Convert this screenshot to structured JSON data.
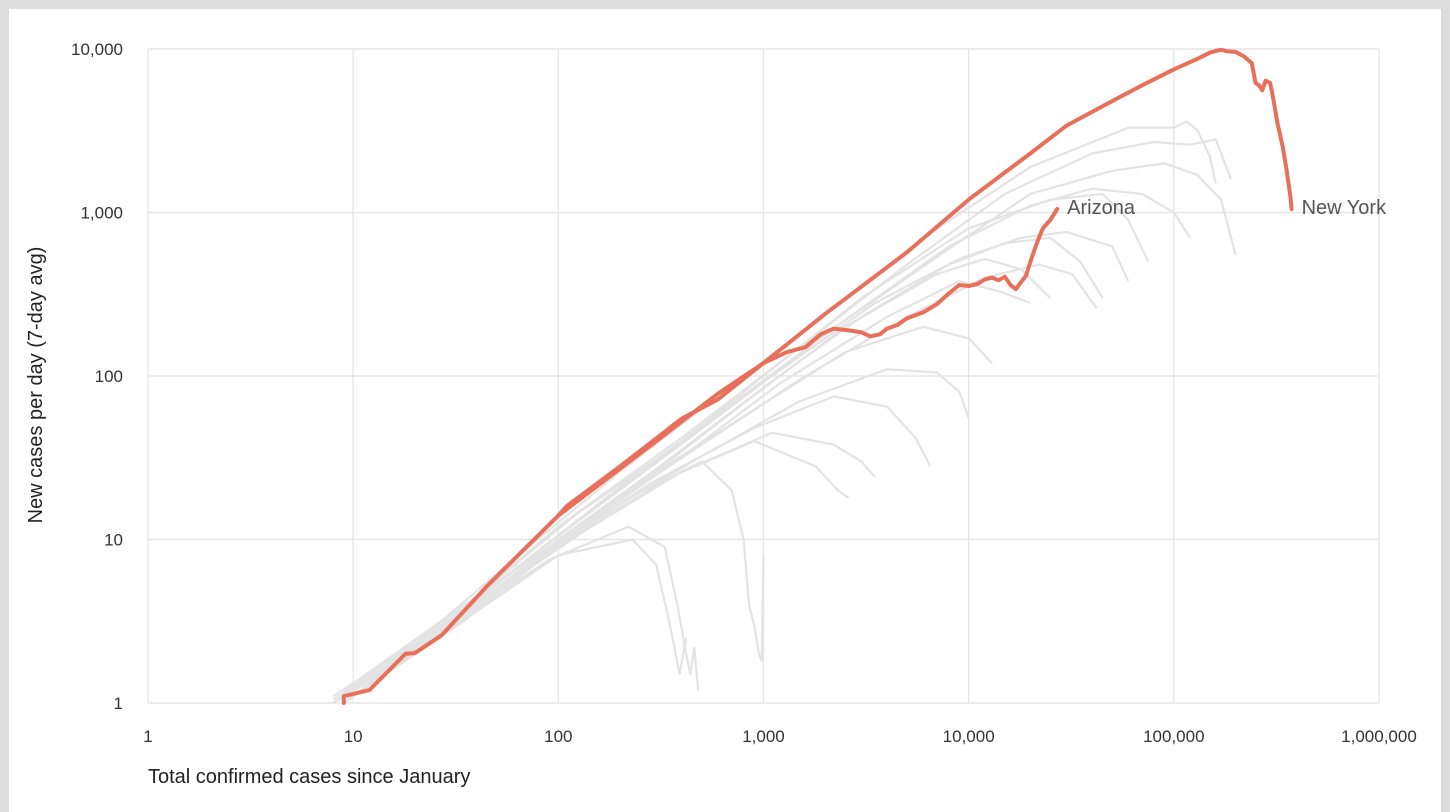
{
  "chart_data": {
    "type": "line",
    "xlabel": "Total confirmed cases since January",
    "ylabel": "New cases per day (7-day avg)",
    "x_scale": "log",
    "y_scale": "log",
    "xlim": [
      1,
      1000000
    ],
    "ylim": [
      1,
      10000
    ],
    "x_ticks": [
      {
        "value": 1,
        "label": "1"
      },
      {
        "value": 10,
        "label": "10"
      },
      {
        "value": 100,
        "label": "100"
      },
      {
        "value": 1000,
        "label": "1,000"
      },
      {
        "value": 10000,
        "label": "10,000"
      },
      {
        "value": 100000,
        "label": "100,000"
      },
      {
        "value": 1000000,
        "label": "1,000,000"
      }
    ],
    "y_ticks": [
      {
        "value": 1,
        "label": "1"
      },
      {
        "value": 10,
        "label": "10"
      },
      {
        "value": 100,
        "label": "100"
      },
      {
        "value": 1000,
        "label": "1,000"
      },
      {
        "value": 10000,
        "label": "10,000"
      }
    ],
    "grid": true,
    "highlight_color": "#e8705a",
    "background_color": "#e3e3e3",
    "series": [
      {
        "name": "New York",
        "highlight": true,
        "points": [
          [
            9,
            1
          ],
          [
            9,
            1.1
          ],
          [
            12,
            1.2
          ],
          [
            18,
            2
          ],
          [
            20,
            2.02
          ],
          [
            27,
            2.6
          ],
          [
            45,
            5.2
          ],
          [
            100,
            14
          ],
          [
            110,
            16
          ],
          [
            200,
            28
          ],
          [
            400,
            55
          ],
          [
            600,
            72
          ],
          [
            1000,
            120
          ],
          [
            2000,
            240
          ],
          [
            5000,
            570
          ],
          [
            10000,
            1200
          ],
          [
            20000,
            2300
          ],
          [
            30000,
            3400
          ],
          [
            50000,
            4800
          ],
          [
            70000,
            6000
          ],
          [
            100000,
            7500
          ],
          [
            130000,
            8700
          ],
          [
            150000,
            9500
          ],
          [
            170000,
            9900
          ],
          [
            180000,
            9700
          ],
          [
            200000,
            9600
          ],
          [
            220000,
            9000
          ],
          [
            240000,
            8200
          ],
          [
            250000,
            6200
          ],
          [
            260000,
            6000
          ],
          [
            270000,
            5600
          ],
          [
            280000,
            6400
          ],
          [
            295000,
            6200
          ],
          [
            305000,
            5000
          ],
          [
            320000,
            3500
          ],
          [
            340000,
            2500
          ],
          [
            355000,
            1800
          ],
          [
            370000,
            1250
          ],
          [
            375000,
            1050
          ]
        ]
      },
      {
        "name": "Arizona",
        "highlight": true,
        "points": [
          [
            100,
            14
          ],
          [
            300,
            40
          ],
          [
            600,
            78
          ],
          [
            1000,
            120
          ],
          [
            1300,
            140
          ],
          [
            1600,
            150
          ],
          [
            1900,
            180
          ],
          [
            2200,
            195
          ],
          [
            2600,
            190
          ],
          [
            3000,
            185
          ],
          [
            3300,
            175
          ],
          [
            3700,
            180
          ],
          [
            4000,
            195
          ],
          [
            4500,
            205
          ],
          [
            5000,
            225
          ],
          [
            6000,
            245
          ],
          [
            7000,
            275
          ],
          [
            8000,
            320
          ],
          [
            9000,
            360
          ],
          [
            10000,
            355
          ],
          [
            11000,
            365
          ],
          [
            12000,
            390
          ],
          [
            13000,
            400
          ],
          [
            14000,
            385
          ],
          [
            15000,
            405
          ],
          [
            16000,
            360
          ],
          [
            17000,
            340
          ],
          [
            18000,
            375
          ],
          [
            19000,
            410
          ],
          [
            20000,
            500
          ],
          [
            21000,
            600
          ],
          [
            22000,
            700
          ],
          [
            23000,
            800
          ],
          [
            25000,
            900
          ],
          [
            27000,
            1050
          ]
        ]
      },
      {
        "points": [
          [
            8,
            1
          ],
          [
            20,
            2.3
          ],
          [
            60,
            7.5
          ],
          [
            200,
            26
          ],
          [
            600,
            75
          ],
          [
            2000,
            240
          ],
          [
            6000,
            700
          ],
          [
            20000,
            1900
          ],
          [
            60000,
            3300
          ],
          [
            100000,
            3300
          ],
          [
            115000,
            3600
          ],
          [
            130000,
            3200
          ],
          [
            150000,
            2200
          ],
          [
            160000,
            1500
          ]
        ]
      },
      {
        "points": [
          [
            9,
            1.1
          ],
          [
            30,
            3.3
          ],
          [
            100,
            12
          ],
          [
            400,
            42
          ],
          [
            1500,
            150
          ],
          [
            5000,
            480
          ],
          [
            15000,
            1300
          ],
          [
            40000,
            2300
          ],
          [
            80000,
            2700
          ],
          [
            120000,
            2600
          ],
          [
            160000,
            2800
          ],
          [
            190000,
            1600
          ]
        ]
      },
      {
        "points": [
          [
            10,
            1.3
          ],
          [
            40,
            4.5
          ],
          [
            120,
            14
          ],
          [
            500,
            48
          ],
          [
            2000,
            180
          ],
          [
            8000,
            600
          ],
          [
            20000,
            1300
          ],
          [
            50000,
            1800
          ],
          [
            90000,
            2000
          ],
          [
            130000,
            1700
          ],
          [
            170000,
            1200
          ],
          [
            200000,
            550
          ]
        ]
      },
      {
        "points": [
          [
            8,
            1.05
          ],
          [
            25,
            2.7
          ],
          [
            80,
            8.5
          ],
          [
            300,
            30
          ],
          [
            1000,
            100
          ],
          [
            3000,
            300
          ],
          [
            10000,
            800
          ],
          [
            25000,
            1200
          ],
          [
            45000,
            1300
          ],
          [
            60000,
            900
          ],
          [
            75000,
            500
          ]
        ]
      },
      {
        "points": [
          [
            9,
            1
          ],
          [
            30,
            3
          ],
          [
            100,
            10
          ],
          [
            300,
            27
          ],
          [
            1000,
            85
          ],
          [
            3000,
            230
          ],
          [
            8000,
            480
          ],
          [
            15000,
            650
          ],
          [
            25000,
            700
          ],
          [
            35000,
            500
          ],
          [
            45000,
            300
          ]
        ]
      },
      {
        "points": [
          [
            8,
            1
          ],
          [
            25,
            2.6
          ],
          [
            70,
            7
          ],
          [
            250,
            22
          ],
          [
            800,
            68
          ],
          [
            2500,
            200
          ],
          [
            7000,
            420
          ],
          [
            12000,
            520
          ],
          [
            18000,
            450
          ],
          [
            25000,
            300
          ]
        ]
      },
      {
        "points": [
          [
            10,
            1.1
          ],
          [
            35,
            3.2
          ],
          [
            120,
            11
          ],
          [
            400,
            32
          ],
          [
            1200,
            90
          ],
          [
            4000,
            230
          ],
          [
            9000,
            380
          ],
          [
            14000,
            330
          ],
          [
            20000,
            280
          ]
        ]
      },
      {
        "points": [
          [
            9,
            1.2
          ],
          [
            30,
            3.5
          ],
          [
            90,
            9
          ],
          [
            300,
            26
          ],
          [
            900,
            62
          ],
          [
            2500,
            140
          ],
          [
            6000,
            200
          ],
          [
            10000,
            170
          ],
          [
            13000,
            120
          ]
        ]
      },
      {
        "points": [
          [
            10,
            1.2
          ],
          [
            40,
            4
          ],
          [
            130,
            12
          ],
          [
            450,
            30
          ],
          [
            1500,
            70
          ],
          [
            4000,
            110
          ],
          [
            7000,
            105
          ],
          [
            9000,
            80
          ],
          [
            10000,
            55
          ]
        ]
      },
      {
        "points": [
          [
            9,
            1
          ],
          [
            28,
            3
          ],
          [
            90,
            8.5
          ],
          [
            280,
            22
          ],
          [
            900,
            48
          ],
          [
            2200,
            75
          ],
          [
            4000,
            65
          ],
          [
            5500,
            42
          ],
          [
            6500,
            28
          ]
        ]
      },
      {
        "points": [
          [
            11,
            1.2
          ],
          [
            40,
            4
          ],
          [
            130,
            11
          ],
          [
            400,
            26
          ],
          [
            1100,
            45
          ],
          [
            2200,
            38
          ],
          [
            3000,
            30
          ],
          [
            3500,
            24
          ]
        ]
      },
      {
        "points": [
          [
            8,
            1
          ],
          [
            25,
            2.4
          ],
          [
            75,
            7
          ],
          [
            220,
            18
          ],
          [
            500,
            30
          ],
          [
            700,
            20
          ],
          [
            800,
            10
          ],
          [
            850,
            4
          ],
          [
            900,
            3
          ],
          [
            950,
            2
          ],
          [
            980,
            1.8
          ],
          [
            1000,
            8
          ]
        ]
      },
      {
        "points": [
          [
            9,
            1
          ],
          [
            30,
            3
          ],
          [
            90,
            7.5
          ],
          [
            220,
            12
          ],
          [
            330,
            9
          ],
          [
            380,
            4
          ],
          [
            420,
            2
          ],
          [
            440,
            1.5
          ],
          [
            460,
            2.2
          ],
          [
            480,
            1.2
          ]
        ]
      },
      {
        "points": [
          [
            10,
            1.1
          ],
          [
            32,
            3
          ],
          [
            100,
            8
          ],
          [
            230,
            10
          ],
          [
            300,
            7
          ],
          [
            350,
            3
          ],
          [
            390,
            1.5
          ],
          [
            420,
            2.5
          ]
        ]
      },
      {
        "points": [
          [
            10,
            1.2
          ],
          [
            35,
            3.5
          ],
          [
            110,
            10
          ],
          [
            350,
            24
          ],
          [
            900,
            40
          ],
          [
            1800,
            28
          ],
          [
            2300,
            20
          ],
          [
            2600,
            18
          ]
        ]
      },
      {
        "points": [
          [
            12,
            1.4
          ],
          [
            45,
            4.5
          ],
          [
            150,
            14
          ],
          [
            500,
            38
          ],
          [
            1500,
            95
          ],
          [
            5000,
            230
          ],
          [
            12000,
            400
          ],
          [
            22000,
            480
          ],
          [
            32000,
            420
          ],
          [
            42000,
            260
          ]
        ]
      },
      {
        "points": [
          [
            9,
            1.1
          ],
          [
            30,
            3.2
          ],
          [
            100,
            10.5
          ],
          [
            350,
            34
          ],
          [
            1100,
            100
          ],
          [
            3500,
            280
          ],
          [
            9000,
            520
          ],
          [
            18000,
            700
          ],
          [
            30000,
            760
          ],
          [
            50000,
            620
          ],
          [
            60000,
            380
          ]
        ]
      },
      {
        "points": [
          [
            8,
            1.1
          ],
          [
            22,
            2.5
          ],
          [
            70,
            7.5
          ],
          [
            230,
            24
          ],
          [
            750,
            72
          ],
          [
            2500,
            220
          ],
          [
            8000,
            620
          ],
          [
            20000,
            1100
          ],
          [
            40000,
            1400
          ],
          [
            70000,
            1300
          ],
          [
            100000,
            1000
          ],
          [
            120000,
            700
          ]
        ]
      }
    ],
    "annotations": [
      {
        "text": "Arizona",
        "series": "Arizona"
      },
      {
        "text": "New York",
        "series": "New York"
      }
    ]
  }
}
